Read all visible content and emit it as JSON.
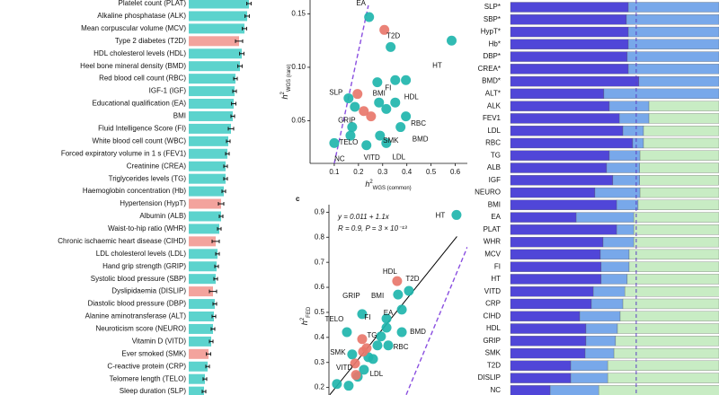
{
  "chart_data": [
    {
      "type": "hbar",
      "categories": [
        "Platelet count (PLAT)",
        "Alkaline phosphatase (ALK)",
        "Mean corpuscular volume (MCV)",
        "Type 2 diabetes (T2D)",
        "HDL cholesterol levels (HDL)",
        "Heel bone mineral density (BMD)",
        "Red blood cell count (RBC)",
        "IGF-1 (IGF)",
        "Educational qualification (EA)",
        "BMI",
        "Fluid Intelligence Score (FI)",
        "White blood cell count (WBC)",
        "Forced expiratory volume in 1 s (FEV1)",
        "Creatinine (CREA)",
        "Triglycerides levels (TG)",
        "Haemoglobin concentration (Hb)",
        "Hypertension (HypT)",
        "Albumin (ALB)",
        "Waist-to-hip ratio (WHR)",
        "Chronic ischaemic heart disease (CIHD)",
        "LDL cholesterol levels (LDL)",
        "Hand grip strength (GRIP)",
        "Systolic blood pressure (SBP)",
        "Dyslipidaemia (DISLIP)",
        "Diastolic blood pressure (DBP)",
        "Alanine aminotransferase (ALT)",
        "Neuroticism score (NEURO)",
        "Vitamin D (VITD)",
        "Ever smoked (SMK)",
        "C-reactive protein (CRP)",
        "Telomere length (TELO)",
        "Sleep duration (SLP)"
      ],
      "values": [
        0.335,
        0.325,
        0.31,
        0.28,
        0.295,
        0.285,
        0.26,
        0.255,
        0.25,
        0.245,
        0.235,
        0.22,
        0.215,
        0.205,
        0.205,
        0.195,
        0.18,
        0.18,
        0.17,
        0.15,
        0.16,
        0.155,
        0.15,
        0.135,
        0.145,
        0.14,
        0.135,
        0.125,
        0.11,
        0.105,
        0.09,
        0.085
      ],
      "errors": [
        0.012,
        0.012,
        0.012,
        0.02,
        0.012,
        0.012,
        0.01,
        0.01,
        0.012,
        0.01,
        0.015,
        0.01,
        0.01,
        0.01,
        0.01,
        0.01,
        0.015,
        0.01,
        0.01,
        0.02,
        0.01,
        0.01,
        0.01,
        0.02,
        0.01,
        0.01,
        0.01,
        0.01,
        0.012,
        0.01,
        0.01,
        0.01
      ],
      "bar_colors": [
        "#5cd3cd",
        "#5cd3cd",
        "#5cd3cd",
        "#f3a39d",
        "#5cd3cd",
        "#5cd3cd",
        "#5cd3cd",
        "#5cd3cd",
        "#5cd3cd",
        "#5cd3cd",
        "#5cd3cd",
        "#5cd3cd",
        "#5cd3cd",
        "#5cd3cd",
        "#5cd3cd",
        "#5cd3cd",
        "#f3a39d",
        "#5cd3cd",
        "#5cd3cd",
        "#f3a39d",
        "#5cd3cd",
        "#5cd3cd",
        "#5cd3cd",
        "#f3a39d",
        "#5cd3cd",
        "#5cd3cd",
        "#5cd3cd",
        "#5cd3cd",
        "#f3a39d",
        "#5cd3cd",
        "#5cd3cd",
        "#5cd3cd"
      ],
      "xlim": [
        0,
        0.5
      ]
    },
    {
      "type": "scatter",
      "xlabel": {
        "base": "h",
        "sup": "2",
        "sub": "WGS (common)"
      },
      "ylabel": {
        "base": "h",
        "sup": "2",
        "sub": "WGS (rare)"
      },
      "xlim": [
        0,
        0.65
      ],
      "ylim": [
        0.01,
        0.163
      ],
      "xticks": [
        0.1,
        0.2,
        0.3,
        0.4,
        0.5,
        0.6
      ],
      "yticks": [
        {
          "value": 0.05,
          "label": "0.05"
        },
        {
          "value": 0.1,
          "label": "0.10"
        },
        {
          "value": 0.15,
          "label": "0.15"
        }
      ],
      "series": [
        {
          "color": "#1fb5ad",
          "x": [
            0.244,
            0.333,
            0.585,
            0.278,
            0.352,
            0.396,
            0.285,
            0.352,
            0.185,
            0.315,
            0.396,
            0.374,
            0.174,
            0.167,
            0.289,
            0.233,
            0.315,
            0.1,
            0.159
          ],
          "y": [
            0.147,
            0.119,
            0.125,
            0.086,
            0.088,
            0.088,
            0.067,
            0.067,
            0.063,
            0.061,
            0.054,
            0.044,
            0.044,
            0.036,
            0.036,
            0.027,
            0.029,
            0.029,
            0.071
          ],
          "labels": [
            "EA",
            null,
            "HT",
            "FI",
            null,
            null,
            "BMI",
            "HDL",
            null,
            null,
            "RBC",
            "BMD",
            "GRIP",
            "TELO",
            "SMK",
            "VITD",
            "LDL",
            "NC",
            "SLP"
          ]
        },
        {
          "color": "#e8776b",
          "x": [
            0.307,
            0.196,
            0.222,
            0.252
          ],
          "y": [
            0.135,
            0.075,
            0.059,
            0.054
          ],
          "labels": [
            "T2D",
            null,
            null,
            null
          ]
        }
      ],
      "lines": [
        {
          "color": "#8a4fe0",
          "dashed": true,
          "x": [
            0.1,
            0.241
          ],
          "y": [
            0.01,
            0.158
          ]
        }
      ]
    },
    {
      "type": "scatter",
      "label": "c",
      "ylabel": {
        "base": "h",
        "sup": "2",
        "sub": "FED"
      },
      "annotations": [
        "y = 0.011 + 1.1x",
        "R = 0.9, P = 3 × 10⁻¹³"
      ],
      "xlim": [
        0.142,
        0.767
      ],
      "ylim": [
        0.17,
        0.93
      ],
      "yticks": [
        0.2,
        0.3,
        0.4,
        0.5,
        0.6,
        0.7,
        0.8,
        0.9
      ],
      "series": [
        {
          "color": "#1fb5ad",
          "x": [
            0.718,
            0.503,
            0.454,
            0.471,
            0.402,
            0.292,
            0.402,
            0.223,
            0.471,
            0.41,
            0.247,
            0.3,
            0.361,
            0.341,
            0.377,
            0.178,
            0.231,
            0.272,
            0.32
          ],
          "y": [
            0.889,
            0.586,
            0.571,
            0.511,
            0.475,
            0.493,
            0.439,
            0.421,
            0.421,
            0.368,
            0.332,
            0.271,
            0.368,
            0.314,
            0.404,
            0.214,
            0.207,
            0.243,
            0.321
          ],
          "labels": [
            "HT",
            "T2D",
            null,
            null,
            "BMI",
            "GRIP",
            "EA",
            "TELO",
            "BMD",
            "RBC",
            "SMK",
            "LDL",
            null,
            null,
            null,
            null,
            null,
            null,
            null
          ]
        },
        {
          "color": "#e8776b",
          "x": [
            0.45,
            0.292,
            0.296,
            0.26,
            0.264,
            0.312
          ],
          "y": [
            0.625,
            0.393,
            0.343,
            0.296,
            0.25,
            0.357
          ],
          "labels": [
            "HDL",
            "FI",
            "TG",
            "VITD",
            null,
            null
          ]
        }
      ],
      "lines": [
        {
          "color": "#000000",
          "dashed": false,
          "x": [
            0.146,
            0.72
          ],
          "y": [
            0.171,
            0.803
          ]
        },
        {
          "color": "#8a4fe0",
          "dashed": true,
          "x": [
            0.491,
            0.767
          ],
          "y": [
            0.171,
            0.761
          ]
        }
      ]
    },
    {
      "type": "stacked-hbar",
      "categories": [
        "SLP*",
        "SBP*",
        "HypT*",
        "Hb*",
        "DBP*",
        "CREA*",
        "BMD*",
        "ALT*",
        "ALK",
        "FEV1",
        "LDL",
        "RBC",
        "TG",
        "ALB",
        "IGF",
        "NEURO",
        "BMI",
        "EA",
        "PLAT",
        "WHR",
        "MCV",
        "FI",
        "HT",
        "VITD",
        "CRP",
        "CIHD",
        "HDL",
        "GRIP",
        "SMK",
        "T2D",
        "DISLIP",
        "NC"
      ],
      "xlim": [
        0,
        100
      ],
      "ref_x": 60.3,
      "ref_color": "#5a3fc0",
      "series": [
        {
          "color": "#5046d8",
          "values": [
            56.5,
            55.6,
            56.5,
            56.5,
            56.0,
            56.5,
            61.6,
            44.8,
            47.4,
            52.2,
            53.9,
            58.6,
            47.4,
            46.1,
            49.1,
            40.5,
            50.9,
            31.5,
            50.9,
            44.4,
            43.1,
            43.5,
            43.5,
            39.7,
            38.8,
            33.2,
            36.2,
            36.2,
            35.8,
            28.9,
            28.9,
            19.0
          ]
        },
        {
          "color": "#78a8ea",
          "values": [
            43.5,
            44.4,
            43.5,
            43.5,
            44.0,
            43.5,
            38.4,
            55.2,
            19.0,
            14.2,
            9.9,
            5.2,
            14.7,
            15.9,
            12.9,
            21.6,
            10.3,
            27.6,
            8.2,
            14.7,
            13.8,
            13.4,
            12.5,
            15.1,
            15.1,
            19.4,
            15.1,
            14.2,
            13.8,
            17.7,
            17.7,
            23.3
          ]
        },
        {
          "color": "#c8ecc4",
          "values": [
            0,
            0,
            0,
            0,
            0,
            0,
            0,
            0,
            33.6,
            33.6,
            36.2,
            36.2,
            37.9,
            37.9,
            37.9,
            37.9,
            38.8,
            40.9,
            40.9,
            40.9,
            43.1,
            43.1,
            44.0,
            45.3,
            46.1,
            47.4,
            48.7,
            49.6,
            50.4,
            53.4,
            53.4,
            57.8
          ]
        }
      ]
    }
  ]
}
